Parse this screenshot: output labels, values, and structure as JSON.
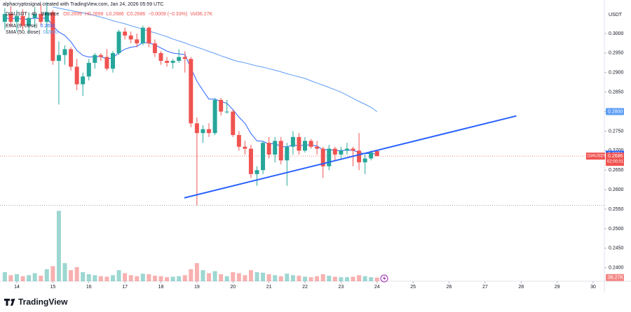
{
  "chart_data": {
    "type": "candlestick",
    "attribution": "alphacryptosignal created with TradingView.com, Jan 24, 2026 05:59 UTC",
    "symbol_line": "DIAUSDT · 4h · Binance",
    "ohlc_texts": [
      "O0.2699",
      "H0.2699",
      "L0.2686",
      "C0.2686",
      "−0.0009 (−0.33%)",
      "Vol36.27K"
    ],
    "currency": "USDT",
    "brand": "TradingView",
    "up_color": "#26a69a",
    "down_color": "#ef5350",
    "x": [
      13.667,
      13.833,
      14.0,
      14.167,
      14.333,
      14.5,
      14.667,
      14.833,
      15.0,
      15.167,
      15.333,
      15.5,
      15.667,
      15.833,
      16.0,
      16.167,
      16.333,
      16.5,
      16.667,
      16.833,
      17.0,
      17.167,
      17.333,
      17.5,
      17.667,
      17.833,
      18.0,
      18.167,
      18.333,
      18.5,
      18.667,
      18.833,
      19.0,
      19.167,
      19.333,
      19.5,
      19.667,
      19.833,
      20.0,
      20.167,
      20.333,
      20.5,
      20.667,
      20.833,
      21.0,
      21.167,
      21.333,
      21.5,
      21.667,
      21.833,
      22.0,
      22.167,
      22.333,
      22.5,
      22.667,
      22.833,
      23.0,
      23.167,
      23.333,
      23.5,
      23.667,
      23.833,
      24.0
    ],
    "open": [
      0.303,
      0.305,
      0.303,
      0.3045,
      0.302,
      0.304,
      0.305,
      0.303,
      0.3055,
      0.293,
      0.2945,
      0.296,
      0.2915,
      0.287,
      0.289,
      0.2925,
      0.2945,
      0.294,
      0.291,
      0.295,
      0.3005,
      0.2995,
      0.2985,
      0.2975,
      0.3015,
      0.2975,
      0.295,
      0.293,
      0.2925,
      0.293,
      0.294,
      0.2935,
      0.277,
      0.2745,
      0.2755,
      0.2745,
      0.283,
      0.28,
      0.28,
      0.274,
      0.271,
      0.2705,
      0.264,
      0.265,
      0.272,
      0.269,
      0.2725,
      0.2675,
      0.271,
      0.2735,
      0.27,
      0.2725,
      0.271,
      0.2705,
      0.266,
      0.2705,
      0.269,
      0.27,
      0.2705,
      0.27,
      0.267,
      0.268,
      0.2699
    ],
    "high": [
      0.3065,
      0.307,
      0.306,
      0.3062,
      0.3055,
      0.3068,
      0.3075,
      0.308,
      0.306,
      0.298,
      0.297,
      0.2965,
      0.2935,
      0.29,
      0.2935,
      0.295,
      0.295,
      0.296,
      0.2955,
      0.301,
      0.3015,
      0.3005,
      0.3,
      0.302,
      0.3018,
      0.2985,
      0.2955,
      0.294,
      0.2935,
      0.296,
      0.2955,
      0.294,
      0.2785,
      0.2765,
      0.277,
      0.2835,
      0.2835,
      0.283,
      0.2805,
      0.275,
      0.2725,
      0.2715,
      0.266,
      0.2725,
      0.2735,
      0.2735,
      0.2735,
      0.272,
      0.275,
      0.2745,
      0.2735,
      0.273,
      0.2725,
      0.271,
      0.2715,
      0.271,
      0.271,
      0.272,
      0.271,
      0.2745,
      0.269,
      0.27,
      0.2699
    ],
    "low": [
      0.301,
      0.302,
      0.3005,
      0.301,
      0.3,
      0.3015,
      0.302,
      0.3,
      0.292,
      0.2818,
      0.292,
      0.2905,
      0.2855,
      0.284,
      0.288,
      0.291,
      0.293,
      0.2905,
      0.29,
      0.2945,
      0.2985,
      0.2975,
      0.2965,
      0.297,
      0.2965,
      0.294,
      0.292,
      0.2915,
      0.291,
      0.2925,
      0.29,
      0.276,
      0.256,
      0.272,
      0.2735,
      0.274,
      0.279,
      0.2795,
      0.2735,
      0.27,
      0.269,
      0.263,
      0.261,
      0.264,
      0.268,
      0.267,
      0.2665,
      0.261,
      0.269,
      0.269,
      0.2695,
      0.2705,
      0.269,
      0.263,
      0.265,
      0.2675,
      0.268,
      0.269,
      0.266,
      0.265,
      0.264,
      0.2675,
      0.2686
    ],
    "close": [
      0.305,
      0.303,
      0.3045,
      0.302,
      0.304,
      0.305,
      0.303,
      0.3055,
      0.293,
      0.2945,
      0.296,
      0.2915,
      0.287,
      0.289,
      0.2925,
      0.2945,
      0.294,
      0.291,
      0.295,
      0.3005,
      0.2995,
      0.2985,
      0.2975,
      0.3015,
      0.2975,
      0.295,
      0.293,
      0.2925,
      0.293,
      0.294,
      0.2935,
      0.277,
      0.2745,
      0.2755,
      0.2745,
      0.283,
      0.28,
      0.28,
      0.274,
      0.271,
      0.2705,
      0.264,
      0.265,
      0.272,
      0.269,
      0.2725,
      0.2675,
      0.271,
      0.2735,
      0.27,
      0.2725,
      0.271,
      0.2705,
      0.266,
      0.2705,
      0.269,
      0.27,
      0.2705,
      0.27,
      0.267,
      0.268,
      0.2695,
      0.2686
    ],
    "volume": {
      "values": [
        90,
        60,
        70,
        50,
        60,
        80,
        55,
        120,
        150,
        700,
        180,
        110,
        140,
        90,
        70,
        60,
        50,
        45,
        60,
        110,
        80,
        60,
        50,
        75,
        70,
        55,
        50,
        40,
        45,
        50,
        60,
        120,
        180,
        110,
        80,
        100,
        70,
        50,
        90,
        80,
        60,
        110,
        90,
        85,
        70,
        60,
        50,
        75,
        60,
        55,
        45,
        40,
        50,
        70,
        55,
        45,
        40,
        40,
        45,
        60,
        50,
        40,
        36.27
      ],
      "last_label": "36.27K",
      "ylim": [
        0,
        800
      ]
    },
    "indicators": [
      {
        "name": "EMA (9, close)",
        "color": "#2962ff",
        "value_label": "0.2691",
        "values": [
          0.304,
          0.3038,
          0.304,
          0.3036,
          0.3037,
          0.304,
          0.3038,
          0.3041,
          0.3019,
          0.3004,
          0.2995,
          0.2979,
          0.2957,
          0.2944,
          0.294,
          0.2941,
          0.2941,
          0.2935,
          0.2938,
          0.2951,
          0.296,
          0.2965,
          0.2967,
          0.2977,
          0.2976,
          0.2971,
          0.2963,
          0.2955,
          0.295,
          0.2948,
          0.2946,
          0.2911,
          0.2878,
          0.2854,
          0.2832,
          0.2832,
          0.2826,
          0.2821,
          0.2805,
          0.2786,
          0.277,
          0.2744,
          0.2725,
          0.2724,
          0.2717,
          0.2719,
          0.271,
          0.271,
          0.2715,
          0.2712,
          0.2715,
          0.2714,
          0.2712,
          0.2702,
          0.2703,
          0.27,
          0.27,
          0.2701,
          0.2701,
          0.2695,
          0.2692,
          0.2693,
          0.2691
        ]
      },
      {
        "name": "SMA (50, close)",
        "color": "#5b9cf6",
        "value_label": "0.2800",
        "values": [
          null,
          null,
          null,
          null,
          null,
          null,
          null,
          null,
          0.3068,
          0.3065,
          0.3062,
          0.3059,
          0.3056,
          0.3053,
          0.305,
          0.3046,
          0.3042,
          0.3038,
          0.3033,
          0.3029,
          0.3025,
          0.302,
          0.3016,
          0.3011,
          0.3006,
          0.3002,
          0.2997,
          0.2992,
          0.2986,
          0.2981,
          0.2976,
          0.297,
          0.2965,
          0.296,
          0.2954,
          0.2949,
          0.2943,
          0.2938,
          0.2932,
          0.2928,
          0.2925,
          0.2921,
          0.2917,
          0.2914,
          0.291,
          0.2906,
          0.2902,
          0.2897,
          0.2893,
          0.2889,
          0.2885,
          0.2879,
          0.2873,
          0.2868,
          0.2862,
          0.2856,
          0.285,
          0.2842,
          0.2834,
          0.2826,
          0.2819,
          0.2811,
          0.28
        ]
      }
    ],
    "trendline": {
      "color": "#2962ff",
      "x": [
        18.65,
        27.87
      ],
      "values": [
        0.2579,
        0.2789
      ]
    },
    "price_tag": {
      "symbol": "DIAUSDT",
      "price": "0.2686",
      "countdown": "02:00:01"
    },
    "xlim": [
      13.533,
      30.311
    ],
    "xticks": [
      14,
      15,
      16,
      17,
      18,
      19,
      20,
      21,
      22,
      23,
      24,
      25,
      26,
      27,
      28,
      29,
      30
    ],
    "ylim": [
      0.2369,
      0.3086
    ],
    "yticks": [
      {
        "value": 0.3,
        "label": "0.3000"
      },
      {
        "value": 0.295,
        "label": "0.2950"
      },
      {
        "value": 0.29,
        "label": "0.2900"
      },
      {
        "value": 0.285,
        "label": "0.2850"
      },
      {
        "value": 0.28,
        "label": "0.2800"
      },
      {
        "value": 0.275,
        "label": "0.2750"
      },
      {
        "value": 0.27,
        "label": "0.2700"
      },
      {
        "value": 0.265,
        "label": "0.2650"
      },
      {
        "value": 0.26,
        "label": "0.2600"
      },
      {
        "value": 0.255,
        "label": "0.2550"
      },
      {
        "value": 0.25,
        "label": "0.2500"
      },
      {
        "value": 0.245,
        "label": "0.2450"
      },
      {
        "value": 0.24,
        "label": "0.2400"
      }
    ],
    "grid": false
  }
}
